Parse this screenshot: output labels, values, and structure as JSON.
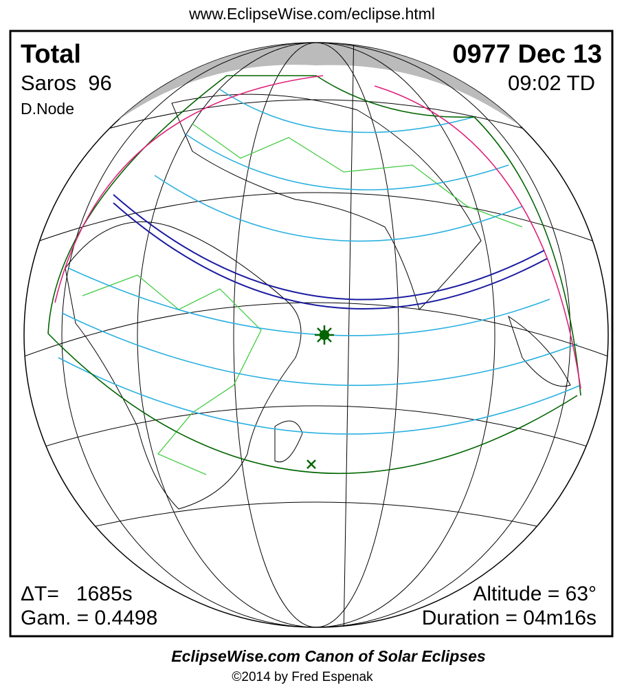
{
  "header": {
    "url": "www.EclipseWise.com/eclipse.html"
  },
  "panel": {
    "eclipse_type": "Total",
    "saros": "Saros  96",
    "node": "D.Node",
    "date": "0977 Dec 13",
    "time": "09:02 TD",
    "delta_t": "ΔT=   1685s",
    "gamma": "Gam. = 0.4498",
    "altitude": "Altitude = 63°",
    "duration": "Duration = 04m16s"
  },
  "footer": {
    "title": "EclipseWise.com Canon of Solar Eclipses",
    "copyright": "©2014 by Fred Espenak"
  }
}
